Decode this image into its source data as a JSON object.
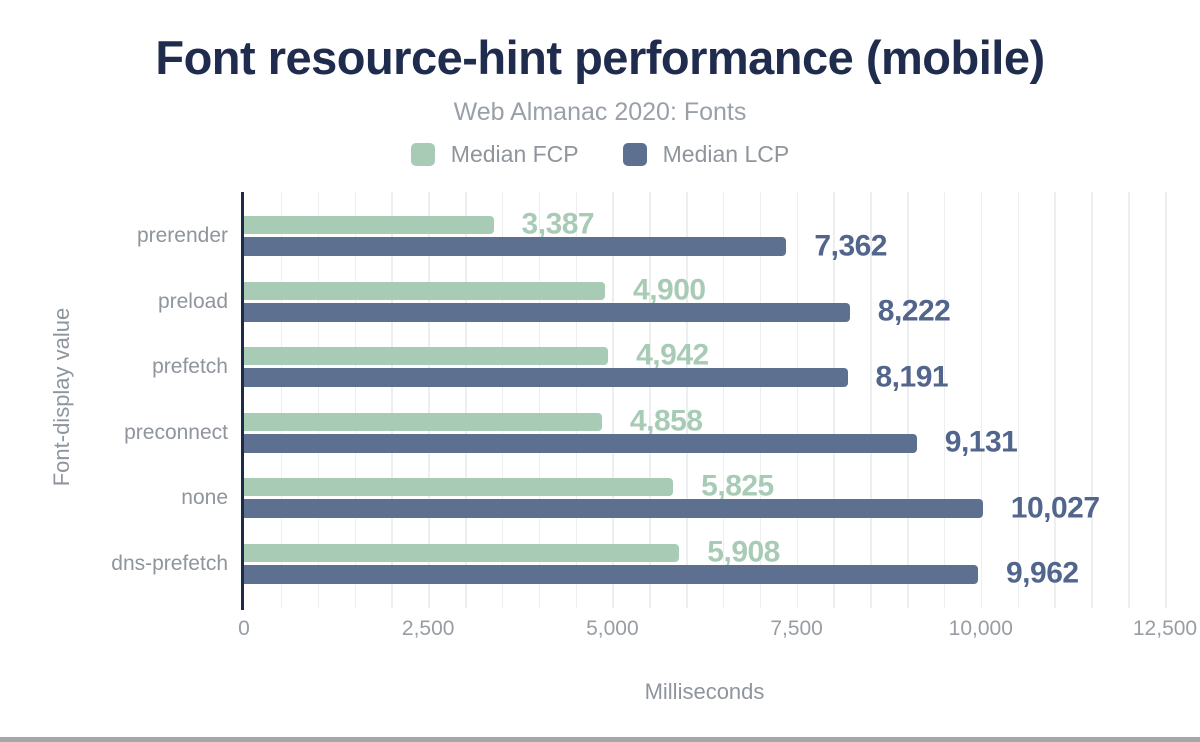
{
  "chart_data": {
    "type": "bar",
    "orientation": "horizontal",
    "title": "Font resource-hint performance (mobile)",
    "subtitle": "Web Almanac 2020: Fonts",
    "xlabel": "Milliseconds",
    "ylabel": "Font-display value",
    "categories": [
      "prerender",
      "preload",
      "prefetch",
      "preconnect",
      "none",
      "dns-prefetch"
    ],
    "series": [
      {
        "name": "Median FCP",
        "color": "#a8cbb6",
        "label_color": "#a8cbb6",
        "values": [
          3387,
          4900,
          4942,
          4858,
          5825,
          5908
        ],
        "labels": [
          "3,387",
          "4,900",
          "4,942",
          "4,858",
          "5,825",
          "5,908"
        ]
      },
      {
        "name": "Median LCP",
        "color": "#5d7090",
        "label_color": "#52658d",
        "values": [
          7362,
          8222,
          8191,
          9131,
          10027,
          9962
        ],
        "labels": [
          "7,362",
          "8,222",
          "8,191",
          "9,131",
          "10,027",
          "9,962"
        ]
      }
    ],
    "xlim": [
      0,
      12500
    ],
    "xticks": [
      {
        "value": 0,
        "label": "0"
      },
      {
        "value": 2500,
        "label": "2,500"
      },
      {
        "value": 5000,
        "label": "5,000"
      },
      {
        "value": 7500,
        "label": "7,500"
      },
      {
        "value": 10000,
        "label": "10,000"
      },
      {
        "value": 12500,
        "label": "12,500"
      }
    ],
    "grid": {
      "minor_step": 500,
      "on": true
    },
    "legend_position": "top",
    "colors": {
      "title": "#202c4e",
      "subtitle": "#9aa0a8",
      "axis_line": "#1c2b4a",
      "axis_text": "#8f959d",
      "tick_text": "#989da5",
      "gridline": "#eceef0"
    }
  }
}
